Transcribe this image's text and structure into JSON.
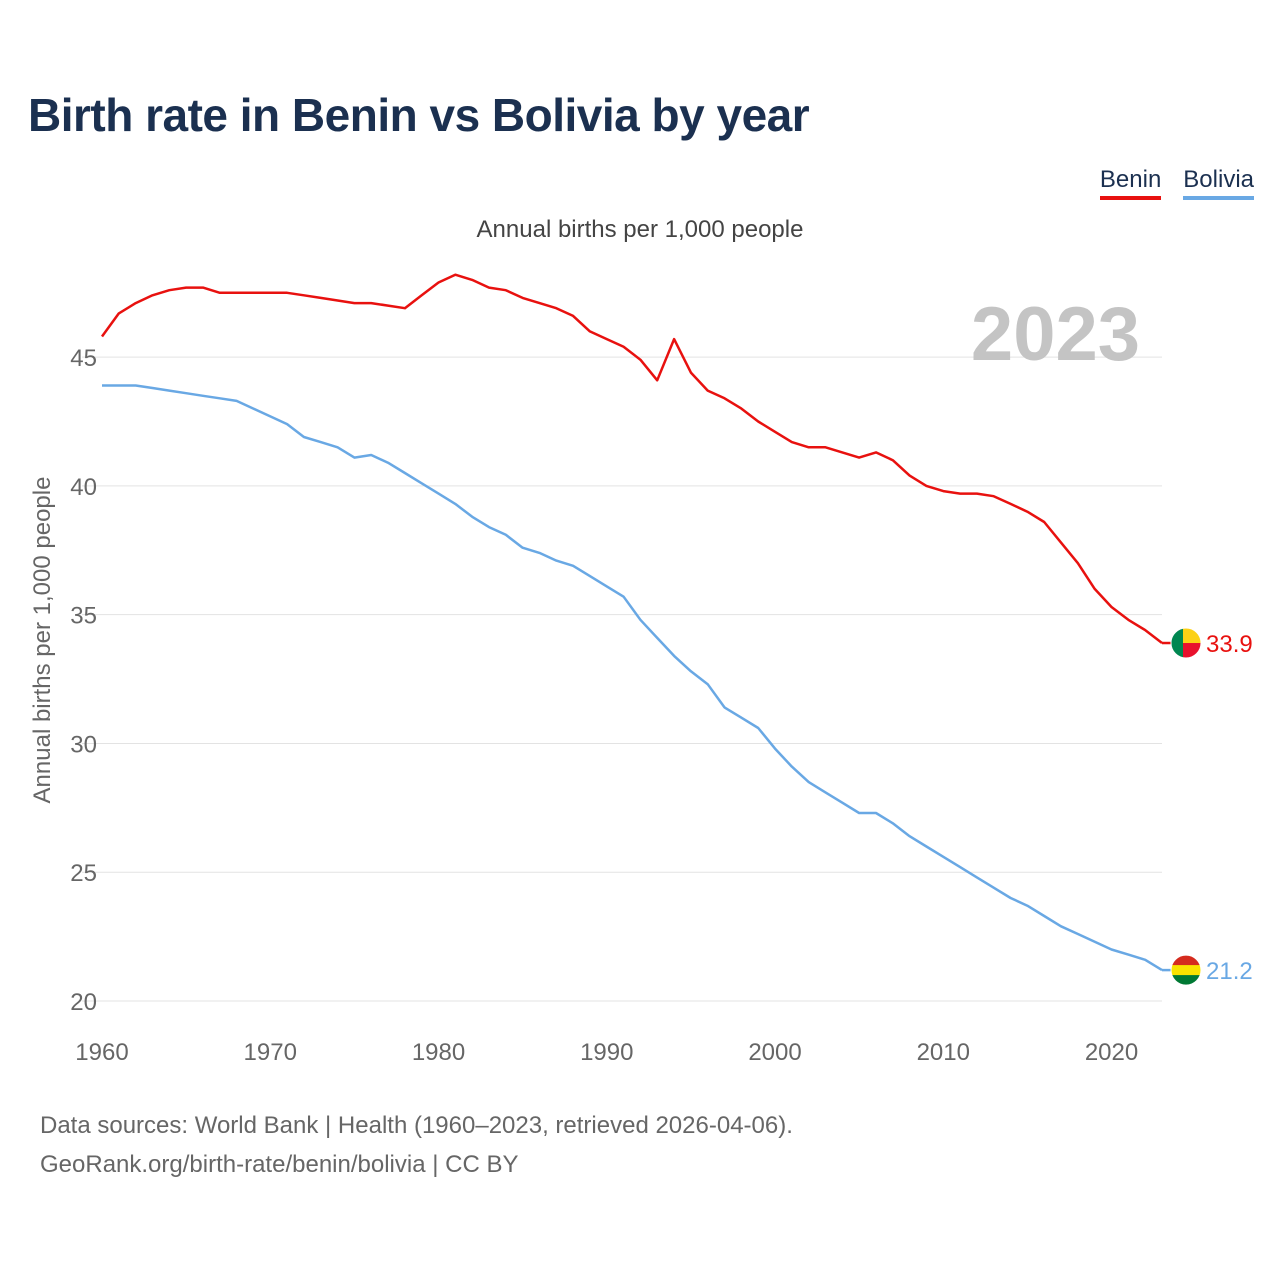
{
  "title": "Birth rate in Benin vs Bolivia by year",
  "subtitle": "Annual births per 1,000 people",
  "year_label": "2023",
  "legend": [
    {
      "name": "Benin",
      "color": "#e8110f"
    },
    {
      "name": "Bolivia",
      "color": "#69a8e4"
    }
  ],
  "sources": {
    "line1": "Data sources: World Bank | Health (1960–2023, retrieved 2026-04-06).",
    "line2": "GeoRank.org/birth-rate/benin/bolivia | CC BY"
  },
  "chart_data": {
    "type": "line",
    "title": "Birth rate in Benin vs Bolivia by year",
    "xlabel": "",
    "ylabel": "Annual births per 1,000 people",
    "xlim": [
      1960,
      2023
    ],
    "ylim": [
      20,
      48.5
    ],
    "xticks": [
      1960,
      1970,
      1980,
      1990,
      2000,
      2010,
      2020
    ],
    "yticks": [
      20,
      25,
      30,
      35,
      40,
      45
    ],
    "grid": true,
    "x": [
      1960,
      1961,
      1962,
      1963,
      1964,
      1965,
      1966,
      1967,
      1968,
      1969,
      1970,
      1971,
      1972,
      1973,
      1974,
      1975,
      1976,
      1977,
      1978,
      1979,
      1980,
      1981,
      1982,
      1983,
      1984,
      1985,
      1986,
      1987,
      1988,
      1989,
      1990,
      1991,
      1992,
      1993,
      1994,
      1995,
      1996,
      1997,
      1998,
      1999,
      2000,
      2001,
      2002,
      2003,
      2004,
      2005,
      2006,
      2007,
      2008,
      2009,
      2010,
      2011,
      2012,
      2013,
      2014,
      2015,
      2016,
      2017,
      2018,
      2019,
      2020,
      2021,
      2022,
      2023
    ],
    "series": [
      {
        "name": "Benin",
        "color": "#e8110f",
        "end_label": "33.9",
        "values": [
          45.8,
          46.7,
          47.1,
          47.4,
          47.6,
          47.7,
          47.7,
          47.5,
          47.5,
          47.5,
          47.5,
          47.5,
          47.4,
          47.3,
          47.2,
          47.1,
          47.1,
          47.0,
          46.9,
          47.4,
          47.9,
          48.2,
          48.0,
          47.7,
          47.6,
          47.3,
          47.1,
          46.9,
          46.6,
          46.0,
          45.7,
          45.4,
          44.9,
          44.1,
          45.7,
          44.4,
          43.7,
          43.4,
          43.0,
          42.5,
          42.1,
          41.7,
          41.5,
          41.5,
          41.3,
          41.1,
          41.3,
          41.0,
          40.4,
          40.0,
          39.8,
          39.7,
          39.7,
          39.6,
          39.3,
          39.0,
          38.6,
          37.8,
          37.0,
          36.0,
          35.3,
          34.8,
          34.4,
          33.9
        ]
      },
      {
        "name": "Bolivia",
        "color": "#69a8e4",
        "end_label": "21.2",
        "values": [
          43.9,
          43.9,
          43.9,
          43.8,
          43.7,
          43.6,
          43.5,
          43.4,
          43.3,
          43.0,
          42.7,
          42.4,
          41.9,
          41.7,
          41.5,
          41.1,
          41.2,
          40.9,
          40.5,
          40.1,
          39.7,
          39.3,
          38.8,
          38.4,
          38.1,
          37.6,
          37.4,
          37.1,
          36.9,
          36.5,
          36.1,
          35.7,
          34.8,
          34.1,
          33.4,
          32.8,
          32.3,
          31.4,
          31.0,
          30.6,
          29.8,
          29.1,
          28.5,
          28.1,
          27.7,
          27.3,
          27.3,
          26.9,
          26.4,
          26.0,
          25.6,
          25.2,
          24.8,
          24.4,
          24.0,
          23.7,
          23.3,
          22.9,
          22.6,
          22.3,
          22.0,
          21.8,
          21.6,
          21.2
        ]
      }
    ]
  }
}
